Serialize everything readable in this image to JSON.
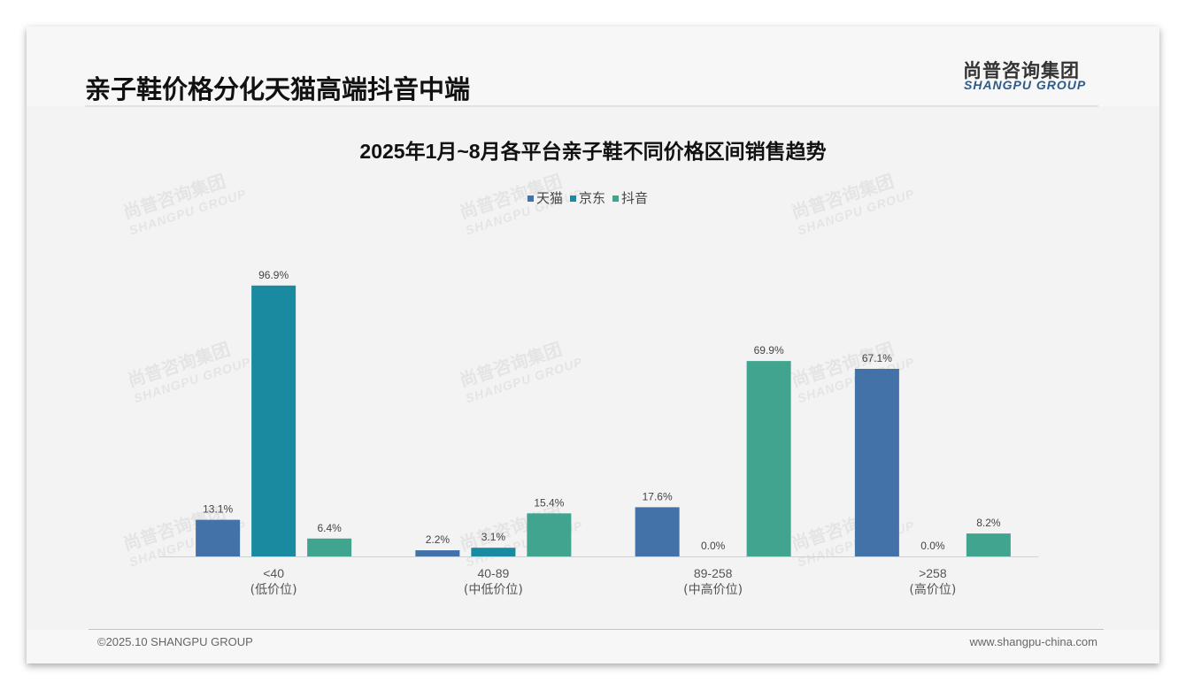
{
  "header": {
    "title": "亲子鞋价格分化天猫高端抖音中端",
    "logo_cn": "尚普咨询集团",
    "logo_en": "SHANGPU GROUP"
  },
  "footer": {
    "copyright": "©2025.10 SHANGPU GROUP",
    "website": "www.shangpu-china.com"
  },
  "watermark": {
    "cn": "尚普咨询集团",
    "en": "SHANGPU GROUP"
  },
  "chart_data": {
    "type": "bar",
    "title": "2025年1月~8月各平台亲子鞋不同价格区间销售趋势",
    "categories": [
      "<40",
      "40-89",
      "89-258",
      ">258"
    ],
    "category_sub": [
      "(低价位)",
      "(中低价位)",
      "(中高价位)",
      "(高价位)"
    ],
    "series": [
      {
        "name": "天猫",
        "color": "#4272a8",
        "values": [
          13.1,
          2.2,
          17.6,
          67.1
        ]
      },
      {
        "name": "京东",
        "color": "#1a8aa0",
        "values": [
          96.9,
          3.1,
          0.0,
          0.0
        ]
      },
      {
        "name": "抖音",
        "color": "#40a48f",
        "values": [
          6.4,
          15.4,
          69.9,
          8.2
        ]
      }
    ],
    "unit": "%",
    "ylim": [
      0,
      100
    ],
    "grid": false,
    "legend": "top"
  }
}
